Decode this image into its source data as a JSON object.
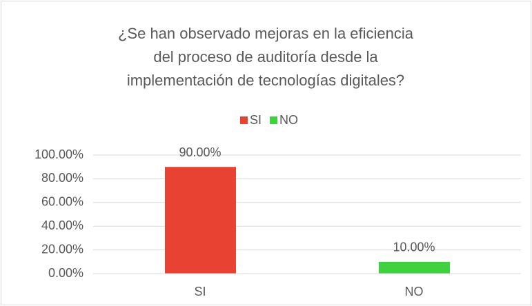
{
  "chart_data": {
    "type": "bar",
    "title": [
      "¿Se han observado mejoras en la eficiencia",
      "del proceso de auditoría desde la",
      "implementación de tecnologías digitales?"
    ],
    "categories": [
      "SI",
      "NO"
    ],
    "values": [
      90,
      10
    ],
    "value_labels": [
      "90.00%",
      "10.00%"
    ],
    "colors": [
      "#e84233",
      "#3fd13f"
    ],
    "legend": "top",
    "ylim": [
      0,
      100
    ],
    "yticks": [
      {
        "value": 0,
        "label": "0.00%"
      },
      {
        "value": 20,
        "label": "20.00%"
      },
      {
        "value": 40,
        "label": "40.00%"
      },
      {
        "value": 60,
        "label": "60.00%"
      },
      {
        "value": 80,
        "label": "80.00%"
      },
      {
        "value": 100,
        "label": "100.00%"
      }
    ],
    "grid": true
  }
}
